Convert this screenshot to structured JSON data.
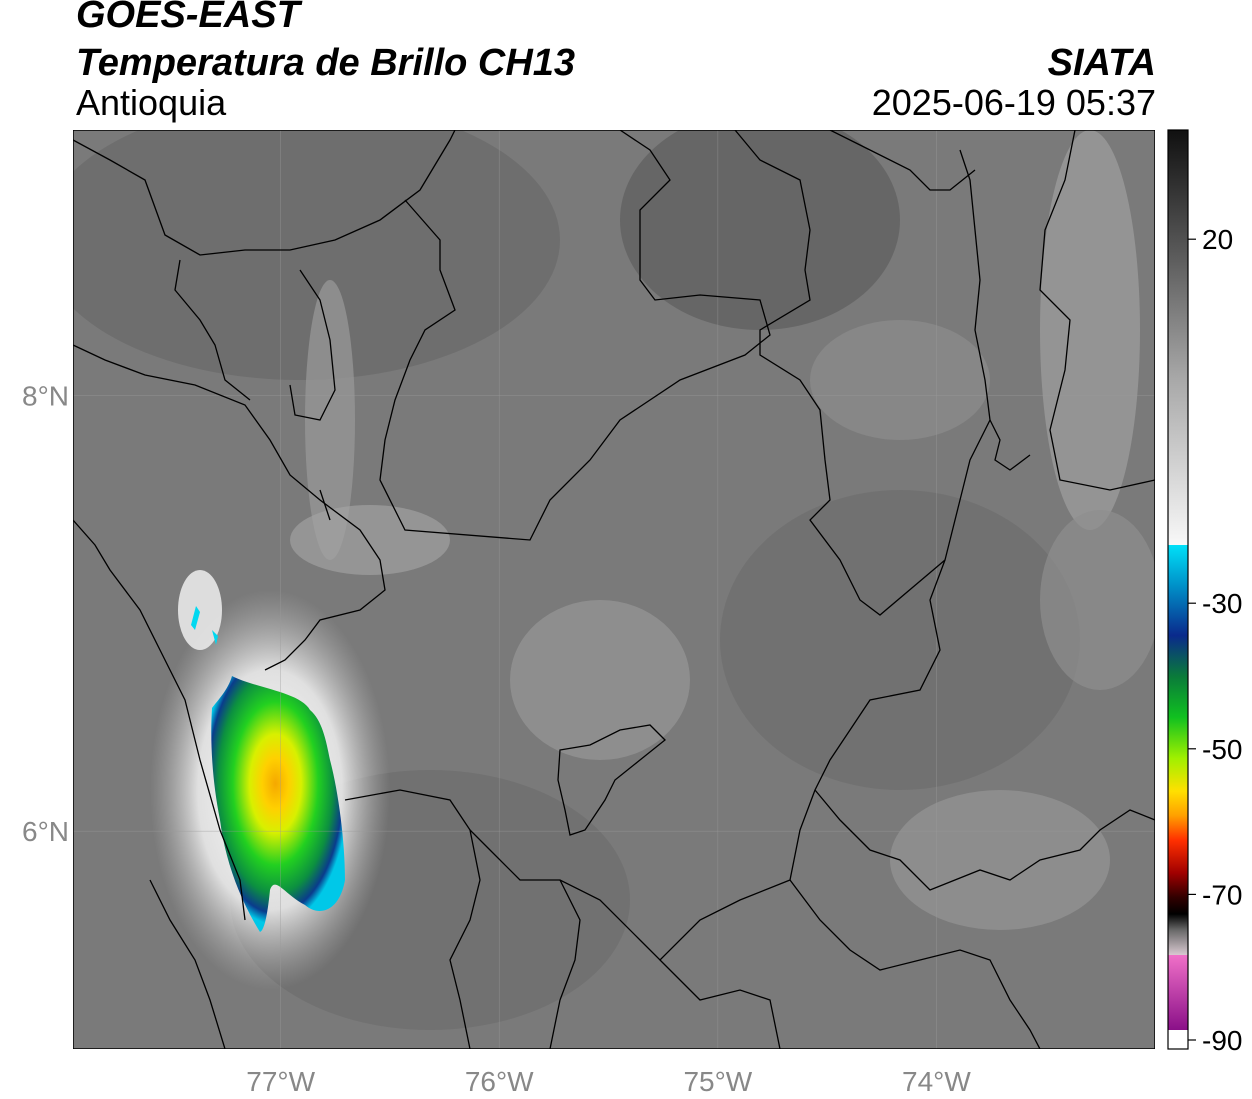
{
  "header": {
    "satellite": "GOES-EAST",
    "product": "Temperatura de Brillo CH13",
    "region": "Antioquia",
    "organization": "SIATA",
    "timestamp": "2025-06-19 05:37"
  },
  "map": {
    "lon_ticks": [
      {
        "value": -77,
        "label": "77°W"
      },
      {
        "value": -76,
        "label": "76°W"
      },
      {
        "value": -75,
        "label": "75°W"
      },
      {
        "value": -74,
        "label": "74°W"
      }
    ],
    "lat_ticks": [
      {
        "value": 8,
        "label": "8°N"
      },
      {
        "value": 6,
        "label": "6°N"
      }
    ],
    "lon_range": [
      -77.95,
      -73.0
    ],
    "lat_range": [
      5.0,
      9.22
    ],
    "background_color": "#7a7a7a",
    "border_color": "#000000"
  },
  "colorbar": {
    "range": [
      -90,
      35
    ],
    "ticks": [
      {
        "value": 20,
        "label": "20"
      },
      {
        "value": -30,
        "label": "-30"
      },
      {
        "value": -50,
        "label": "-50"
      },
      {
        "value": -70,
        "label": "-70"
      },
      {
        "value": -90,
        "label": "-90"
      }
    ]
  }
}
